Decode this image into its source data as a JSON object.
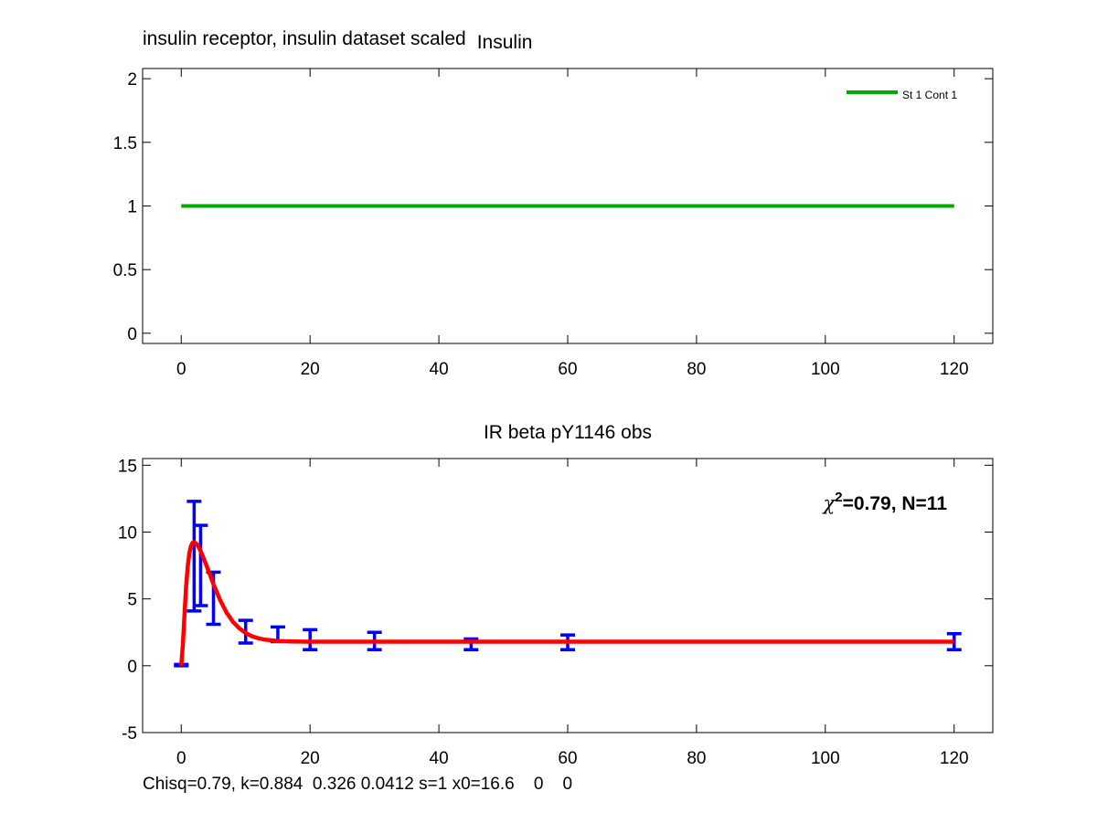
{
  "figure_title": "insulin receptor, insulin dataset scaled",
  "footer_text": "Chisq=0.79, k=0.884  0.326 0.0412 s=1 x0=16.6    0    0",
  "chart_data": [
    {
      "type": "line",
      "title": "Insulin",
      "xlabel": "",
      "ylabel": "",
      "xlim": [
        -6,
        126
      ],
      "ylim": [
        -0.08,
        2.08
      ],
      "xticks": [
        0,
        20,
        40,
        60,
        80,
        100,
        120
      ],
      "yticks": [
        0,
        0.5,
        1,
        1.5,
        2
      ],
      "ytick_labels": [
        "0",
        "0.5",
        "1",
        "1.5",
        "2"
      ],
      "grid": false,
      "legend": "top-right",
      "series": [
        {
          "name": "St 1 Cont 1",
          "color": "#00aa00",
          "x": [
            0,
            120
          ],
          "y": [
            1,
            1
          ]
        }
      ]
    },
    {
      "type": "line",
      "title": "IR beta pY1146 obs",
      "xlabel": "",
      "ylabel": "",
      "xlim": [
        -6,
        126
      ],
      "ylim": [
        -5,
        15.5
      ],
      "xticks": [
        0,
        20,
        40,
        60,
        80,
        100,
        120
      ],
      "yticks": [
        -5,
        0,
        5,
        10,
        15
      ],
      "ytick_labels": [
        "-5",
        "0",
        "5",
        "10",
        "15"
      ],
      "grid": false,
      "annotation": {
        "symbol": "χ",
        "sup": "2",
        "text": "=0.79, N=11",
        "position": "top-right"
      },
      "error_bars": {
        "color": "#0000ff",
        "x": [
          0,
          2,
          3,
          5,
          10,
          15,
          20,
          30,
          45,
          60,
          120
        ],
        "lower": [
          0,
          4.1,
          4.5,
          3.1,
          1.7,
          1.8,
          1.2,
          1.2,
          1.2,
          1.2,
          1.2
        ],
        "upper": [
          0.1,
          12.3,
          10.5,
          7.0,
          3.4,
          2.9,
          2.7,
          2.5,
          2.0,
          2.3,
          2.4
        ]
      },
      "fit_curve": {
        "color": "#ff0000",
        "x": [
          0,
          0.25,
          0.5,
          0.75,
          1,
          1.25,
          1.5,
          1.75,
          2,
          2.5,
          3,
          3.5,
          4,
          4.5,
          5,
          6,
          7,
          8,
          9,
          10,
          11,
          12,
          13,
          14,
          15,
          17,
          20,
          25,
          30,
          40,
          60,
          90,
          120
        ],
        "y": [
          0,
          1.6,
          3.8,
          5.9,
          7.4,
          8.4,
          8.95,
          9.2,
          9.25,
          9.05,
          8.6,
          8.0,
          7.4,
          6.75,
          6.1,
          4.95,
          4.0,
          3.3,
          2.8,
          2.45,
          2.2,
          2.05,
          1.95,
          1.9,
          1.85,
          1.82,
          1.8,
          1.8,
          1.8,
          1.8,
          1.8,
          1.8,
          1.8
        ]
      }
    }
  ]
}
